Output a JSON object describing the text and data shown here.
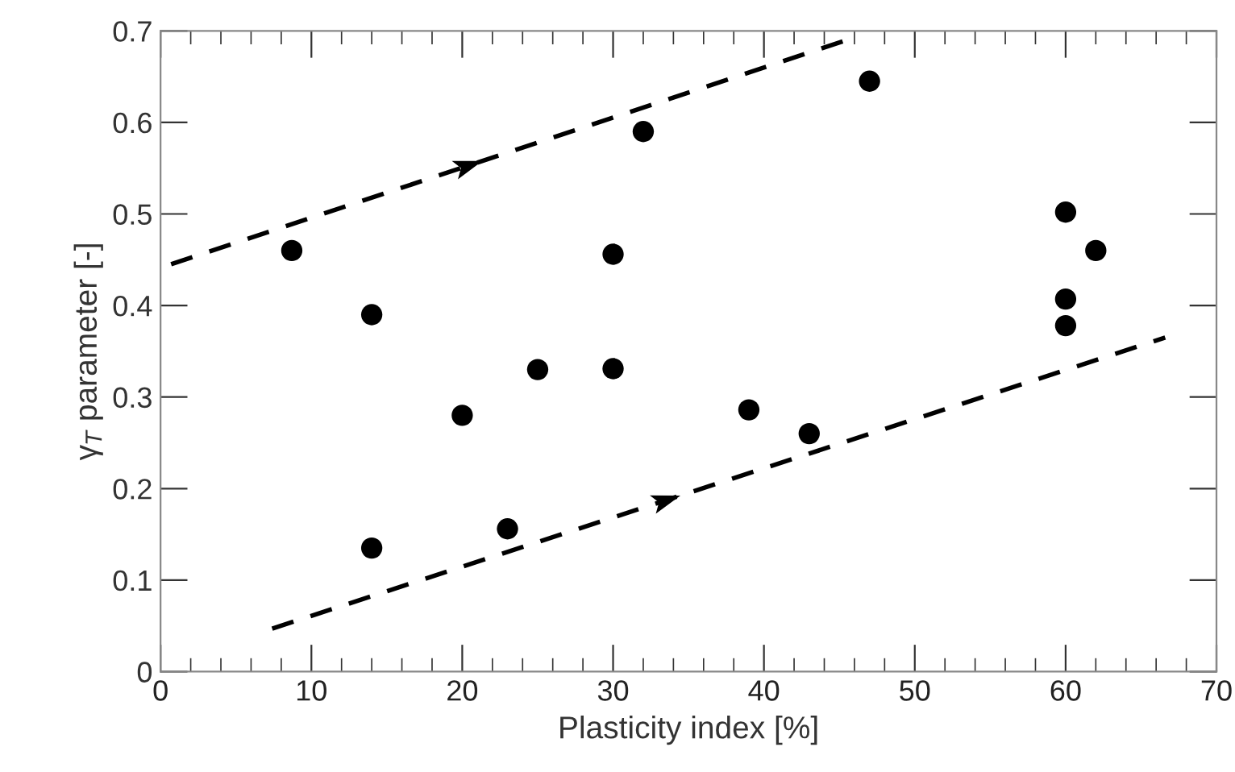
{
  "chart_data": {
    "type": "scatter",
    "xlabel": "Plasticity index [%]",
    "ylabel": "γ$_{T}$ parameter [-]",
    "xlim": [
      0,
      70
    ],
    "xticks": [
      0,
      10,
      20,
      30,
      40,
      50,
      60,
      70
    ],
    "ylim": [
      0,
      0.7
    ],
    "yticks": [
      0,
      0.1,
      0.2,
      0.3,
      0.4,
      0.5,
      0.6,
      0.7
    ],
    "grid": false,
    "legend": false,
    "series": [
      {
        "color": "#000000",
        "marker": "circle",
        "x": [
          8.7,
          14,
          14,
          20,
          23,
          25,
          30,
          30,
          32,
          39,
          43,
          47,
          60,
          62,
          60,
          60
        ],
        "values": [
          0.46,
          0.39,
          0.135,
          0.28,
          0.156,
          0.33,
          0.456,
          0.331,
          0.59,
          0.286,
          0.26,
          0.645,
          0.502,
          0.46,
          0.407,
          0.378
        ]
      },
      {
        "type": "line",
        "color": "#000000",
        "line_style": "dashed",
        "marker": "none",
        "x": [
          0.7,
          45.3
        ],
        "values": [
          0.445,
          0.689
        ]
      },
      {
        "type": "line",
        "color": "#000000",
        "line_style": "dashed",
        "marker": "none",
        "x": [
          7.4,
          66.6
        ],
        "values": [
          0.047,
          0.365
        ]
      }
    ]
  }
}
